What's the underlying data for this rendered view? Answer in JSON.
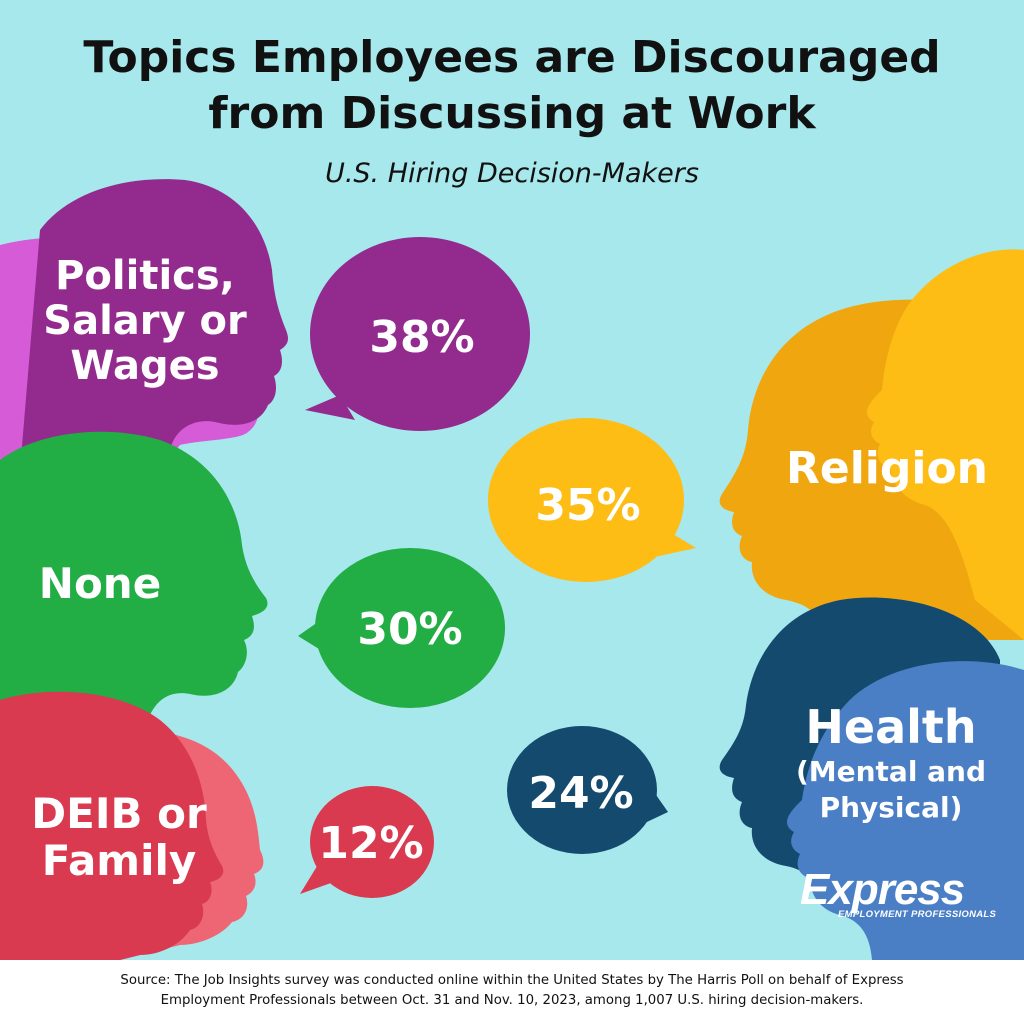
{
  "title": "Topics Employees are Discouraged from Discussing at Work",
  "subtitle": "U.S. Hiring Decision-Makers",
  "colors": {
    "background": "#a6e8ec",
    "politics": "#932b8e",
    "politics_back": "#d65bd6",
    "none": "#22ad45",
    "none_back": "#2e8a46",
    "deib": "#d93a50",
    "deib_back": "#ee6673",
    "religion": "#fdbd15",
    "religion_back": "#f0a70f",
    "health": "#134a6e",
    "health_back": "#4a7fc6"
  },
  "chart_data": {
    "type": "bar",
    "title": "Topics Employees are Discouraged from Discussing at Work",
    "subtitle": "U.S. Hiring Decision-Makers",
    "unit": "%",
    "categories": [
      "Politics, Salary or Wages",
      "Religion",
      "None",
      "Health (Mental and Physical)",
      "DEIB or Family"
    ],
    "values": [
      38,
      35,
      30,
      24,
      12
    ],
    "value_labels": [
      "38%",
      "35%",
      "30%",
      "24%",
      "12%"
    ]
  },
  "labels": {
    "politics": [
      "Politics,",
      "Salary or",
      "Wages"
    ],
    "none": "None",
    "deib": [
      "DEIB or",
      "Family"
    ],
    "religion": "Religion",
    "health_title": "Health",
    "health_sub": [
      "(Mental and",
      "Physical)"
    ]
  },
  "logo": {
    "name": "Express",
    "tagline": "EMPLOYMENT PROFESSIONALS"
  },
  "footer": {
    "line1": "Source: The Job Insights survey was conducted online within the United States by The Harris Poll on behalf of Express",
    "line2": "Employment Professionals between Oct. 31 and Nov. 10, 2023, among 1,007 U.S. hiring decision-makers."
  }
}
